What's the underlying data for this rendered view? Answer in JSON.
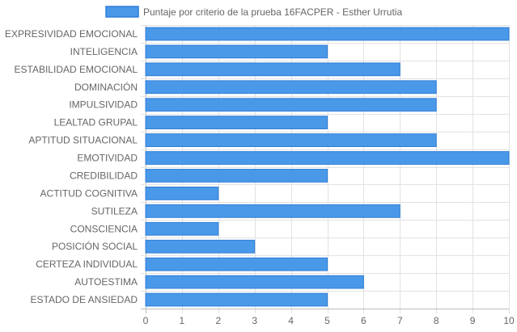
{
  "chart_data": {
    "type": "bar",
    "orientation": "horizontal",
    "legend": {
      "placement": "top",
      "entries": [
        "Puntaje por criterio de la prueba 16FACPER - Esther Urrutia"
      ]
    },
    "series": [
      {
        "name": "Puntaje por criterio de la prueba 16FACPER - Esther Urrutia",
        "color": "#4a98e8",
        "border_color": "#2f7fd8",
        "values": [
          10,
          5,
          7,
          8,
          8,
          5,
          8,
          10,
          5,
          2,
          7,
          2,
          3,
          5,
          6,
          5
        ]
      }
    ],
    "categories": [
      "EXPRESIVIDAD EMOCIONAL",
      "INTELIGENCIA",
      "ESTABILIDAD EMOCIONAL",
      "DOMINACIÓN",
      "IMPULSIVIDAD",
      "LEALTAD GRUPAL",
      "APTITUD SITUACIONAL",
      "EMOTIVIDAD",
      "CREDIBILIDAD",
      "ACTITUD COGNITIVA",
      "SUTILEZA",
      "CONSCIENCIA",
      "POSICIÓN SOCIAL",
      "CERTEZA INDIVIDUAL",
      "AUTOESTIMA",
      "ESTADO DE ANSIEDAD"
    ],
    "x_ticks": [
      "0",
      "1",
      "2",
      "3",
      "4",
      "5",
      "6",
      "7",
      "8",
      "9",
      "10"
    ],
    "xlim": [
      0,
      10
    ],
    "grid": true,
    "title": "",
    "xlabel": "",
    "ylabel": ""
  }
}
